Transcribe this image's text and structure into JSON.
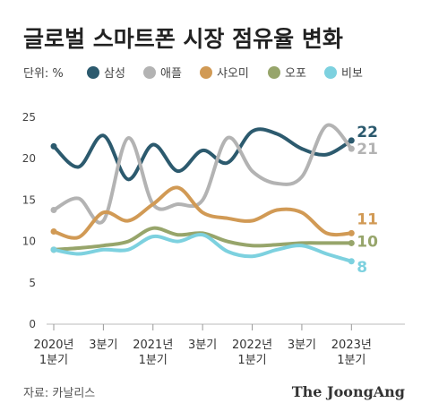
{
  "title": "글로벌 스마트폰 시장 점유율 변화",
  "unit_label": "단위: %",
  "source": "자료: 카날리스",
  "brand": "The JoongAng",
  "colors": {
    "samsung": "#2c5a6e",
    "apple": "#b3b3b3",
    "xiaomi": "#d19a55",
    "oppo": "#97a56b",
    "vivo": "#7dd1df"
  },
  "chart_data": {
    "type": "line",
    "categories": [
      [
        "2020년",
        "1분기"
      ],
      [
        "3분기"
      ],
      [
        "2021년",
        "1분기"
      ],
      [
        "3분기"
      ],
      [
        "2022년",
        "1분기"
      ],
      [
        "3분기"
      ],
      [
        "2023년",
        "1분기"
      ]
    ],
    "x": [
      0,
      2,
      4,
      6,
      8,
      10,
      12
    ],
    "ylim": [
      0,
      25
    ],
    "yticks": [
      0,
      5,
      10,
      15,
      20,
      25
    ],
    "xlim": [
      0,
      13
    ],
    "grid": false,
    "legend_position": "top",
    "series": [
      {
        "name": "삼성",
        "color_key": "samsung",
        "end_label": "22",
        "points": [
          [
            0,
            21.5
          ],
          [
            1,
            19
          ],
          [
            2,
            22.8
          ],
          [
            3,
            17.5
          ],
          [
            4,
            21.7
          ],
          [
            5,
            18.5
          ],
          [
            6,
            21
          ],
          [
            7,
            19.5
          ],
          [
            8,
            23.3
          ],
          [
            9,
            23
          ],
          [
            10,
            21.2
          ],
          [
            11,
            20.5
          ],
          [
            12,
            22.2
          ]
        ]
      },
      {
        "name": "애플",
        "color_key": "apple",
        "end_label": "21",
        "points": [
          [
            0,
            13.8
          ],
          [
            1,
            15.2
          ],
          [
            2,
            12.5
          ],
          [
            3,
            22.5
          ],
          [
            4,
            14.5
          ],
          [
            5,
            14.5
          ],
          [
            6,
            15
          ],
          [
            7,
            22.5
          ],
          [
            8,
            18.5
          ],
          [
            9,
            17
          ],
          [
            10,
            17.8
          ],
          [
            11,
            24
          ],
          [
            12,
            21.2
          ]
        ]
      },
      {
        "name": "샤오미",
        "color_key": "xiaomi",
        "end_label": "11",
        "points": [
          [
            0,
            11.2
          ],
          [
            1,
            10.5
          ],
          [
            2,
            13.5
          ],
          [
            3,
            12.5
          ],
          [
            4,
            14.5
          ],
          [
            5,
            16.5
          ],
          [
            6,
            13.5
          ],
          [
            7,
            12.8
          ],
          [
            8,
            12.5
          ],
          [
            9,
            13.8
          ],
          [
            10,
            13.5
          ],
          [
            11,
            11
          ],
          [
            12,
            11
          ]
        ]
      },
      {
        "name": "오포",
        "color_key": "oppo",
        "end_label": "10",
        "points": [
          [
            0,
            9
          ],
          [
            1,
            9.2
          ],
          [
            2,
            9.5
          ],
          [
            3,
            10
          ],
          [
            4,
            11.6
          ],
          [
            5,
            10.8
          ],
          [
            6,
            11
          ],
          [
            7,
            10
          ],
          [
            8,
            9.5
          ],
          [
            9,
            9.6
          ],
          [
            10,
            9.8
          ],
          [
            11,
            9.8
          ],
          [
            12,
            9.8
          ]
        ]
      },
      {
        "name": "비보",
        "color_key": "vivo",
        "end_label": "8",
        "points": [
          [
            0,
            9
          ],
          [
            1,
            8.5
          ],
          [
            2,
            9
          ],
          [
            3,
            9
          ],
          [
            4,
            10.6
          ],
          [
            5,
            10
          ],
          [
            6,
            10.8
          ],
          [
            7,
            8.8
          ],
          [
            8,
            8.2
          ],
          [
            9,
            9
          ],
          [
            10,
            9.5
          ],
          [
            11,
            8.5
          ],
          [
            12,
            7.6
          ]
        ]
      }
    ]
  }
}
